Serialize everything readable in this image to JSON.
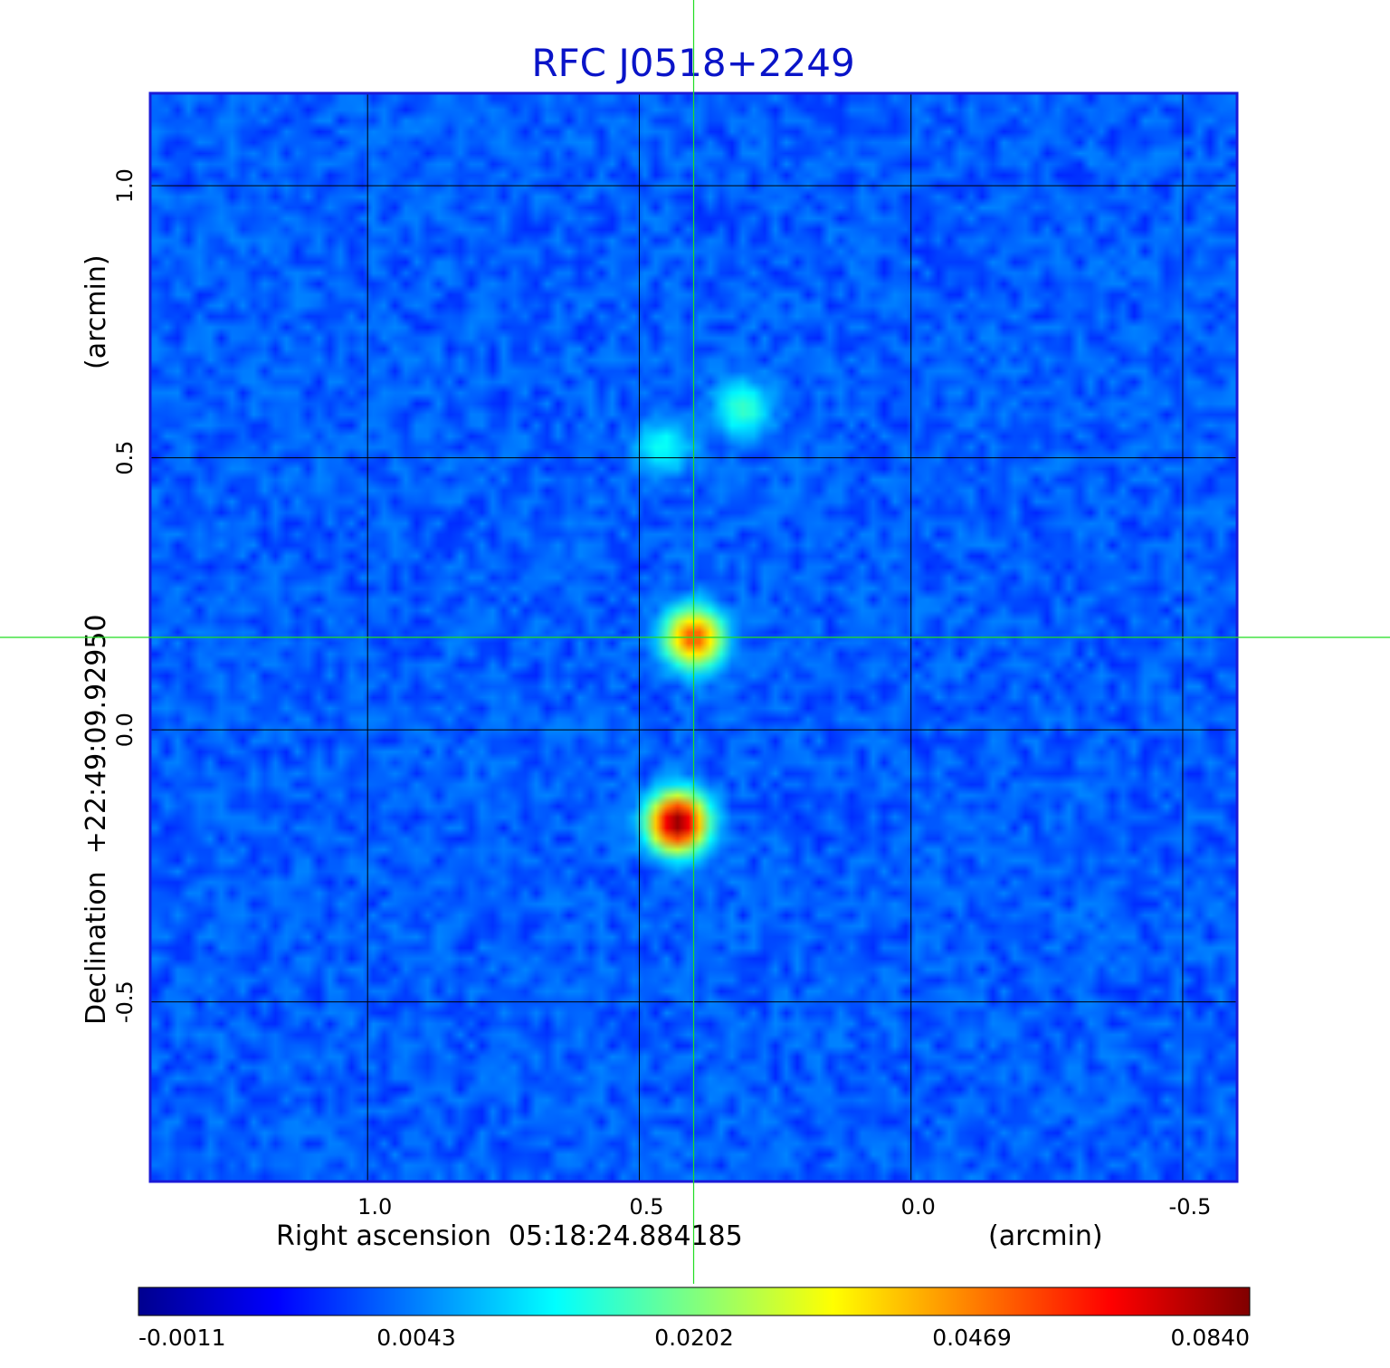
{
  "chart_data": {
    "type": "heatmap",
    "title": "RFC J0518+2249",
    "xlabel": "Right ascension  05:18:24.884185",
    "xunit": "(arcmin)",
    "ylabel": "Declination  +22:49:09.92950",
    "yunit": "(arcmin)",
    "xlim": [
      1.4,
      -0.6
    ],
    "ylim": [
      -0.83,
      1.17
    ],
    "xticks": [
      1.0,
      0.5,
      0.0,
      -0.5
    ],
    "xtick_labels": [
      "1.0",
      "0.5",
      "0.0",
      "-0.5"
    ],
    "yticks": [
      -0.5,
      0.0,
      0.5,
      1.0
    ],
    "ytick_labels": [
      "-0.5",
      "0.0",
      "0.5",
      "1.0"
    ],
    "grid": true,
    "crosshair": {
      "x": 0.4,
      "y": 0.17,
      "color": "#22dd22"
    },
    "colormap": "jet",
    "colorbar": {
      "ticks": [
        -0.0011,
        0.0043,
        0.0202,
        0.0469,
        0.084
      ],
      "labels": [
        "-0.0011",
        "0.0043",
        "0.0202",
        "0.0469",
        "0.0840"
      ]
    },
    "features": [
      {
        "x": 0.4,
        "y": 0.17,
        "peak": 0.05
      },
      {
        "x": 0.43,
        "y": -0.17,
        "peak": 0.084
      },
      {
        "x": 0.31,
        "y": 0.59,
        "peak": 0.01
      },
      {
        "x": 0.455,
        "y": 0.52,
        "peak": 0.007
      }
    ],
    "background_level": 0.0
  },
  "colors": {
    "title": "#0a14c8",
    "frame": "#1a1ad8",
    "grid": "#000000",
    "crosshair": "#22dd22"
  }
}
